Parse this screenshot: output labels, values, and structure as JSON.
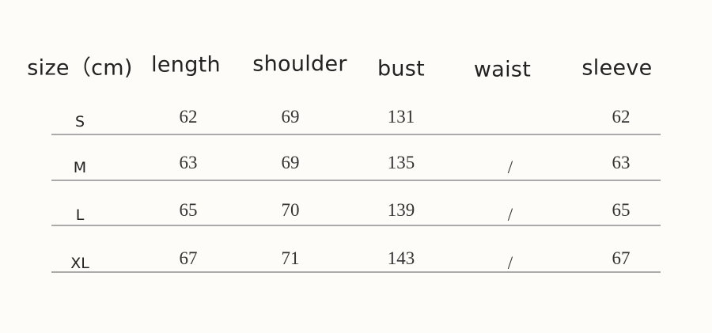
{
  "headers": [
    "size（cm)",
    "length",
    "shoulder",
    "bust",
    "waist",
    "sleeve"
  ],
  "rows": [
    {
      "size": "S",
      "length": "62",
      "shoulder": "69",
      "bust": "131",
      "waist": "",
      "sleeve": "62"
    },
    {
      "size": "M",
      "length": "63",
      "shoulder": "69",
      "bust": "135",
      "waist": "/",
      "sleeve": "63"
    },
    {
      "size": "L",
      "length": "65",
      "shoulder": "70",
      "bust": "139",
      "waist": "/",
      "sleeve": "65"
    },
    {
      "size": "XL",
      "length": "67",
      "shoulder": "71",
      "bust": "143",
      "waist": "/",
      "sleeve": "67"
    }
  ]
}
